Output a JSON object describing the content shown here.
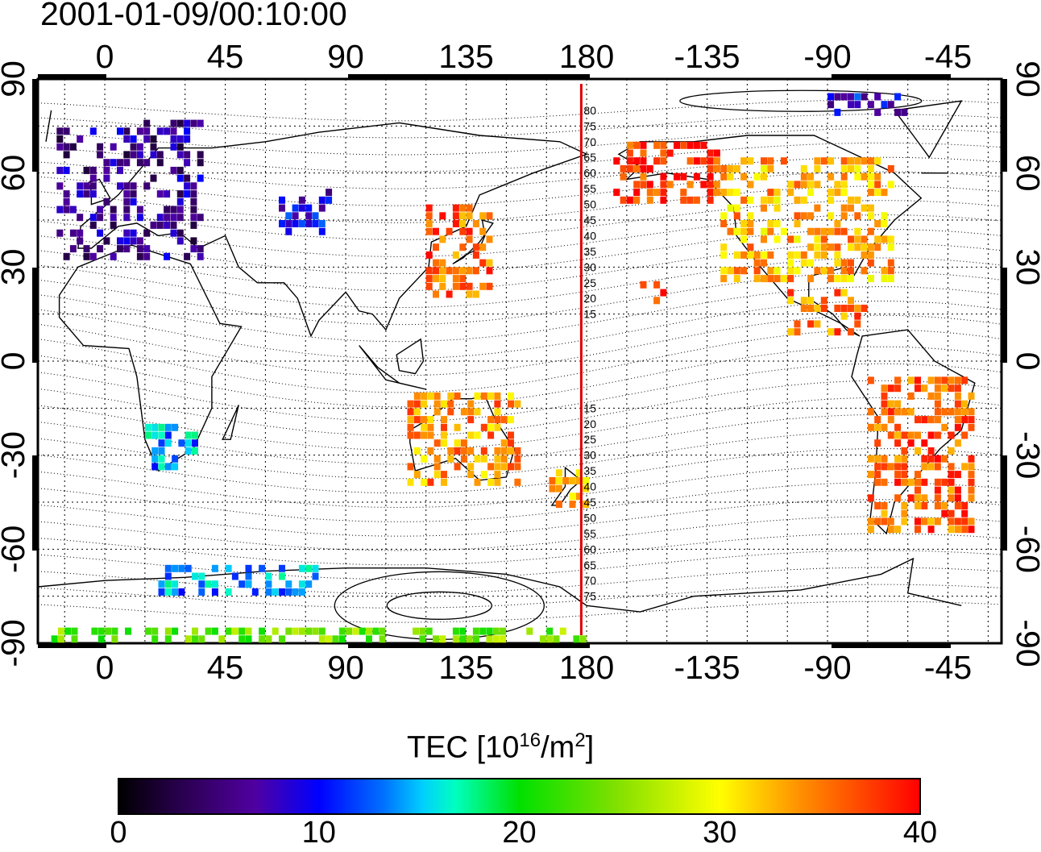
{
  "title": "2001-01-09/00:10:00",
  "axes": {
    "top_ticks": [
      "0",
      "45",
      "90",
      "135",
      "180",
      "-135",
      "-90",
      "-45"
    ],
    "bottom_ticks": [
      "0",
      "45",
      "90",
      "135",
      "180",
      "-135",
      "-90",
      "-45"
    ],
    "left_ticks": [
      "90",
      "60",
      "30",
      "0",
      "-30",
      "-60",
      "-90"
    ],
    "right_ticks": [
      "90",
      "60",
      "30",
      "0",
      "-30",
      "-60",
      "-90"
    ],
    "lon_range": [
      -25,
      335
    ],
    "lat_range": [
      -90,
      90
    ]
  },
  "meridian_marker": {
    "longitude": 178,
    "color": "#e00000",
    "north_labels": [
      "80",
      "75",
      "70",
      "65",
      "60",
      "55",
      "50",
      "45",
      "40",
      "35",
      "30",
      "25",
      "20",
      "15"
    ],
    "south_labels": [
      "15",
      "20",
      "25",
      "30",
      "35",
      "40",
      "45",
      "50",
      "55",
      "60",
      "65",
      "70",
      "75"
    ]
  },
  "colorbar": {
    "title_prefix": "TEC  [10",
    "title_sup1": "16",
    "title_mid": "/m",
    "title_sup2": "2",
    "title_suffix": "]",
    "ticks": [
      "0",
      "10",
      "20",
      "30",
      "40"
    ],
    "min": 0,
    "max": 40
  },
  "tec_regions": [
    {
      "name": "europe",
      "lon": [
        -18,
        35
      ],
      "lat": [
        32,
        75
      ],
      "tec": 6
    },
    {
      "name": "central-asia",
      "lon": [
        65,
        85
      ],
      "lat": [
        40,
        55
      ],
      "tec": 9
    },
    {
      "name": "japan",
      "lon": [
        120,
        145
      ],
      "lat": [
        20,
        50
      ],
      "tec": 36
    },
    {
      "name": "north-america",
      "lon": [
        -130,
        -65
      ],
      "lat": [
        25,
        65
      ],
      "tec": 33
    },
    {
      "name": "alaska",
      "lon": [
        -170,
        -130
      ],
      "lat": [
        50,
        68
      ],
      "tec": 38
    },
    {
      "name": "hawaii",
      "lon": [
        -160,
        -150
      ],
      "lat": [
        18,
        25
      ],
      "tec": 39
    },
    {
      "name": "central-america",
      "lon": [
        -105,
        -75
      ],
      "lat": [
        8,
        22
      ],
      "tec": 35
    },
    {
      "name": "australia",
      "lon": [
        113,
        154
      ],
      "lat": [
        -40,
        -12
      ],
      "tec": 34
    },
    {
      "name": "new-zealand",
      "lon": [
        166,
        180
      ],
      "lat": [
        -47,
        -35
      ],
      "tec": 33
    },
    {
      "name": "south-america",
      "lon": [
        -75,
        -35
      ],
      "lat": [
        -55,
        -5
      ],
      "tec": 36
    },
    {
      "name": "south-africa",
      "lon": [
        15,
        35
      ],
      "lat": [
        -35,
        -20
      ],
      "tec": 14
    },
    {
      "name": "antarctica-east",
      "lon": [
        20,
        80
      ],
      "lat": [
        -75,
        -65
      ],
      "tec": 14
    },
    {
      "name": "antarctica-south",
      "lon": [
        -20,
        180
      ],
      "lat": [
        -90,
        -85
      ],
      "tec": 24
    },
    {
      "name": "arctic",
      "lon": [
        -90,
        -60
      ],
      "lat": [
        78,
        85
      ],
      "tec": 9
    }
  ]
}
